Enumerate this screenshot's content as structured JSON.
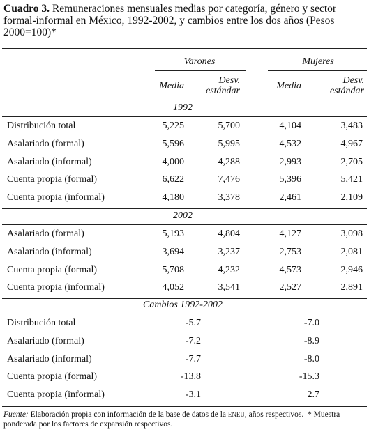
{
  "title": {
    "label": "Cuadro 3.",
    "text": "Remuneraciones mensuales medias por categoría, género y sector formal-informal en México, 1992-2002, y cambios entre los dos años (Pesos 2000=100)*"
  },
  "table": {
    "groups": [
      "Varones",
      "Mujeres"
    ],
    "subheaders": [
      "Media",
      "Desv. estándar",
      "Media",
      "Desv. estándar"
    ],
    "sections": [
      {
        "label": "1992",
        "rows": [
          [
            "Distribución total",
            "5,225",
            "5,700",
            "4,104",
            "3,483"
          ],
          [
            "Asalariado (formal)",
            "5,596",
            "5,995",
            "4,532",
            "4,967"
          ],
          [
            "Asalariado (informal)",
            "4,000",
            "4,288",
            "2,993",
            "2,705"
          ],
          [
            "Cuenta propia (formal)",
            "6,622",
            "7,476",
            "5,396",
            "5,421"
          ],
          [
            "Cuenta propia (informal)",
            "4,180",
            "3,378",
            "2,461",
            "2,109"
          ]
        ]
      },
      {
        "label": "2002",
        "rows": [
          [
            "Asalariado (formal)",
            "5,193",
            "4,804",
            "4,127",
            "3,098"
          ],
          [
            "Asalariado (informal)",
            "3,694",
            "3,237",
            "2,753",
            "2,081"
          ],
          [
            "Cuenta propia (formal)",
            "5,708",
            "4,232",
            "4,573",
            "2,946"
          ],
          [
            "Cuenta propia (informal)",
            "4,052",
            "3,541",
            "2,527",
            "2,891"
          ]
        ]
      },
      {
        "label": "Cambios 1992-2002",
        "rows": [
          [
            "Distribución total",
            "-5.7",
            "-7.0"
          ],
          [
            "Asalariado (formal)",
            "-7.2",
            "-8.9"
          ],
          [
            "Asalariado (informal)",
            "-7.7",
            "-8.0"
          ],
          [
            "Cuenta propia (formal)",
            "-13.8",
            "-15.3"
          ],
          [
            "Cuenta propia (informal)",
            "-3.1",
            "2.7"
          ]
        ]
      }
    ]
  },
  "footnote": {
    "label": "Fuente:",
    "text": "Elaboración propia con información de la base de datos de la",
    "acronym": "ENEU",
    "rest": ", años respectivos.",
    "note": "* Muestra ponderada por los factores de expansión respectivos."
  }
}
